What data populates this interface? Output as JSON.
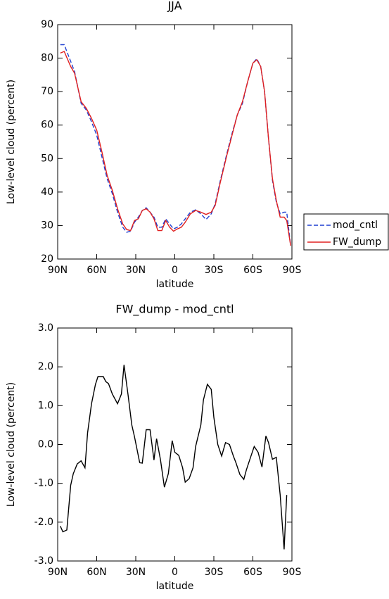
{
  "chart_data": [
    {
      "type": "line",
      "title": "JJA",
      "xlabel": "latitude",
      "ylabel": "Low-level cloud (percent)",
      "x": [
        88,
        85,
        80,
        77,
        72,
        68,
        64,
        60,
        56,
        52,
        48,
        44,
        40,
        37,
        34,
        31,
        28,
        25,
        22,
        19,
        16,
        13,
        10,
        7,
        4,
        1,
        -2,
        -5,
        -8,
        -12,
        -16,
        -20,
        -24,
        -28,
        -31,
        -35,
        -40,
        -44,
        -48,
        -52,
        -56,
        -60,
        -63,
        -66,
        -69,
        -72,
        -75,
        -78,
        -81,
        -84,
        -86,
        -89
      ],
      "series": [
        {
          "name": "mod_cntl",
          "color": "#1f3fd0",
          "style": "dashed",
          "values": [
            84,
            84,
            79,
            76,
            66.5,
            64.5,
            61,
            57,
            50.5,
            44,
            39.5,
            34,
            29.5,
            28,
            28.3,
            31,
            32.5,
            34.5,
            35.3,
            34,
            32.5,
            29.5,
            29.5,
            32,
            30.5,
            29,
            29.5,
            30.5,
            32,
            34,
            34.7,
            33.5,
            31.8,
            33.5,
            36.5,
            43.5,
            51.5,
            57.5,
            63,
            66.5,
            73,
            78.5,
            79.8,
            77.5,
            70,
            56,
            43.5,
            37,
            33.5,
            34,
            34,
            24
          ]
        },
        {
          "name": "FW_dump",
          "color": "#e02020",
          "style": "solid",
          "values": [
            81.5,
            82,
            77.5,
            75.5,
            67,
            65,
            62,
            58.5,
            52,
            45,
            40.5,
            35,
            30.5,
            28.8,
            28.5,
            31.5,
            32,
            34.5,
            35,
            34,
            32,
            28.5,
            28.5,
            31.5,
            29.5,
            28.3,
            29,
            29.5,
            31,
            33.5,
            34.5,
            34,
            33.3,
            34,
            36,
            43,
            51,
            57,
            63,
            67,
            73,
            78.5,
            79.5,
            77.5,
            70,
            56,
            44,
            37.5,
            32.5,
            32.5,
            31.5,
            24
          ]
        }
      ],
      "xlim": [
        90,
        -90
      ],
      "xticks": [
        {
          "value": 90,
          "label": "90N"
        },
        {
          "value": 60,
          "label": "60N"
        },
        {
          "value": 30,
          "label": "30N"
        },
        0,
        {
          "value": -30,
          "label": "30S"
        },
        {
          "value": -60,
          "label": "60S"
        },
        {
          "value": -90,
          "label": "90S"
        }
      ],
      "ylim": [
        20,
        90
      ],
      "yticks": [
        20,
        30,
        40,
        50,
        60,
        70,
        80,
        90
      ],
      "legend": "right"
    },
    {
      "type": "line",
      "title": "FW_dump - mod_cntl",
      "xlabel": "latitude",
      "ylabel": "Low-level cloud (percent)",
      "x": [
        88,
        86,
        83,
        80,
        78,
        75,
        72,
        69,
        67,
        64,
        61,
        59,
        55,
        53,
        51,
        48,
        44,
        41,
        39,
        36,
        33,
        31,
        27,
        25,
        22,
        19,
        16,
        14,
        11,
        8,
        5,
        2,
        0,
        -3,
        -6,
        -8,
        -11,
        -14,
        -16,
        -20,
        -22,
        -25,
        -28,
        -30,
        -33,
        -36,
        -39,
        -42,
        -45,
        -47,
        -50,
        -53,
        -55,
        -58,
        -61,
        -64,
        -67,
        -70,
        -72,
        -75,
        -78,
        -81,
        -84,
        -86
      ],
      "series": [
        {
          "name": "FW_dump - mod_cntl",
          "color": "#000000",
          "style": "solid",
          "values": [
            -2.1,
            -2.25,
            -2.2,
            -1.05,
            -0.75,
            -0.5,
            -0.42,
            -0.6,
            0.3,
            1.05,
            1.55,
            1.75,
            1.75,
            1.62,
            1.57,
            1.3,
            1.05,
            1.3,
            2.05,
            1.3,
            0.5,
            0.2,
            -0.47,
            -0.48,
            0.38,
            0.38,
            -0.4,
            0.15,
            -0.4,
            -1.1,
            -0.75,
            0.1,
            -0.2,
            -0.28,
            -0.6,
            -0.97,
            -0.88,
            -0.6,
            -0.05,
            0.5,
            1.15,
            1.55,
            1.42,
            0.7,
            0.0,
            -0.3,
            0.05,
            0.0,
            -0.3,
            -0.47,
            -0.77,
            -0.9,
            -0.65,
            -0.35,
            -0.05,
            -0.2,
            -0.58,
            0.22,
            0.05,
            -0.38,
            -0.33,
            -1.3,
            -2.7,
            -1.3
          ]
        }
      ],
      "xlim": [
        90,
        -90
      ],
      "xticks": [
        {
          "value": 90,
          "label": "90N"
        },
        {
          "value": 60,
          "label": "60N"
        },
        {
          "value": 30,
          "label": "30N"
        },
        0,
        {
          "value": -30,
          "label": "30S"
        },
        {
          "value": -60,
          "label": "60S"
        },
        {
          "value": -90,
          "label": "90S"
        }
      ],
      "ylim": [
        -3,
        3
      ],
      "yticks": [
        {
          "value": -3,
          "label": "-3.0"
        },
        {
          "value": -2,
          "label": "-2.0"
        },
        {
          "value": -1,
          "label": "-1.0"
        },
        {
          "value": 0,
          "label": "0.0"
        },
        {
          "value": 1,
          "label": "1.0"
        },
        {
          "value": 2,
          "label": "2.0"
        },
        {
          "value": 3,
          "label": "3.0"
        }
      ]
    }
  ]
}
